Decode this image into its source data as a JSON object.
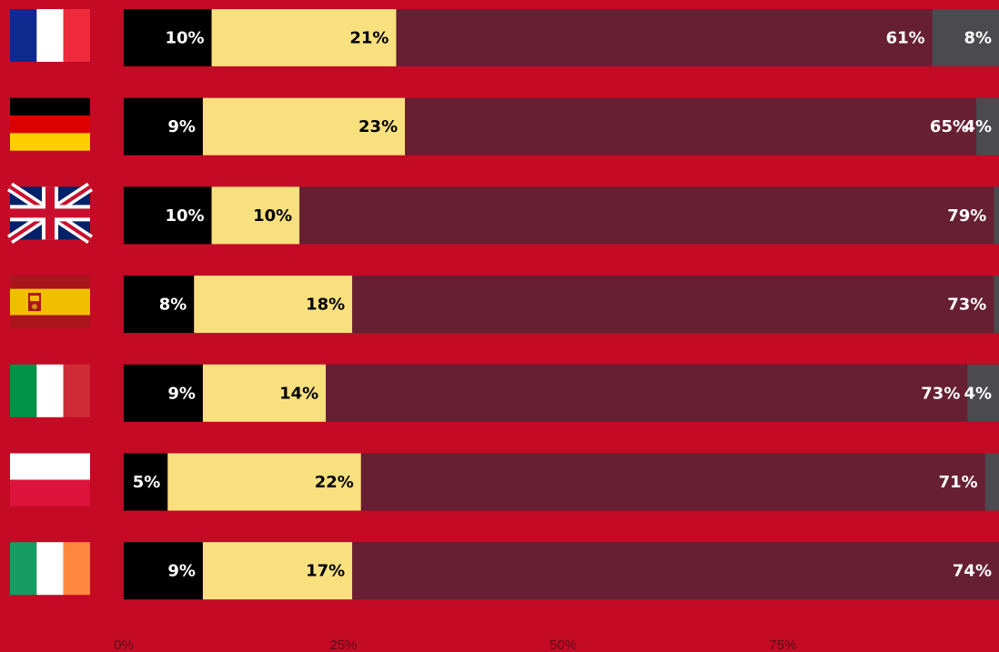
{
  "colors": {
    "background": "#c40a24",
    "segments": [
      "#000000",
      "#f9e07f",
      "#661f33",
      "#4a4a4f"
    ],
    "labels_on_segments": [
      "#ffffff",
      "#000000",
      "#ffffff",
      "#ffffff"
    ]
  },
  "chart_data": {
    "type": "bar",
    "orientation": "horizontal",
    "stacked": true,
    "categories": [
      "France",
      "Germany",
      "United Kingdom",
      "Spain",
      "Italy",
      "Poland",
      "Ireland"
    ],
    "flag_icons": [
      "flag-france-icon",
      "flag-germany-icon",
      "flag-uk-icon",
      "flag-spain-icon",
      "flag-italy-icon",
      "flag-poland-icon",
      "flag-ireland-icon"
    ],
    "series": [
      {
        "values": [
          10,
          9,
          10,
          8,
          9,
          5,
          9
        ]
      },
      {
        "values": [
          21,
          23,
          10,
          18,
          14,
          22,
          17
        ]
      },
      {
        "values": [
          61,
          65,
          79,
          73,
          73,
          71,
          74
        ]
      },
      {
        "values": [
          8,
          4,
          1,
          1,
          4,
          2,
          0
        ]
      }
    ],
    "data_labels": [
      [
        "10%",
        "21%",
        "61%",
        "8%"
      ],
      [
        "9%",
        "23%",
        "65%",
        "4%"
      ],
      [
        "10%",
        "10%",
        "79%",
        ""
      ],
      [
        "8%",
        "18%",
        "73%",
        ""
      ],
      [
        "9%",
        "14%",
        "73%",
        "4%"
      ],
      [
        "5%",
        "22%",
        "71%",
        ""
      ],
      [
        "9%",
        "17%",
        "74%",
        ""
      ]
    ],
    "x_ticks": [
      "0%",
      "25%",
      "50%",
      "75%"
    ],
    "x_tick_values": [
      0,
      25,
      50,
      75
    ],
    "xlim": [
      0,
      100
    ],
    "grid": false,
    "legend": "none"
  }
}
